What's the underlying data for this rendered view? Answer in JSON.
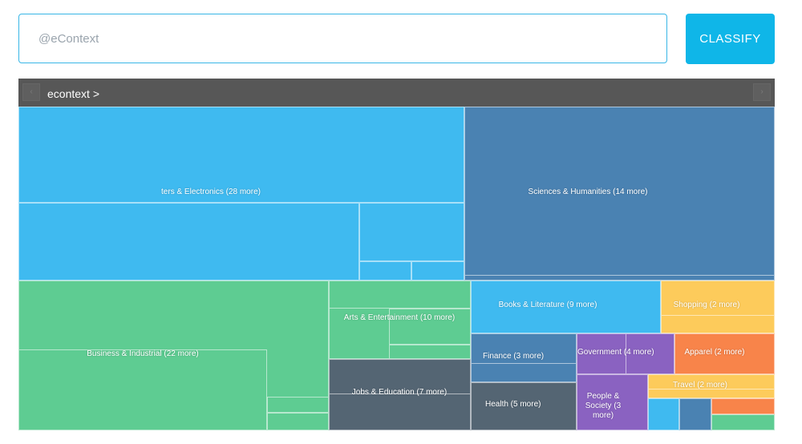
{
  "search": {
    "placeholder": "@eContext",
    "value": ""
  },
  "classify_button": "CLASSIFY",
  "nav": {
    "prev_icon": "chevron-left-icon",
    "next_icon": "chevron-right-icon",
    "prev_glyph": "‹",
    "next_glyph": "›",
    "breadcrumb": "econtext >"
  },
  "treemap": {
    "colors": {
      "blue": "#3fbaf0",
      "steel": "#4a82b2",
      "green": "#5ecc92",
      "slate": "#546573",
      "yellow": "#fdcb5b",
      "orange": "#f8844a",
      "purple": "#8a62c1"
    },
    "categories": [
      {
        "label": "ters & Electronics (28 more)"
      },
      {
        "label": "Sciences & Humanities (14 more)"
      },
      {
        "label": "Business & Industrial (22 more)"
      },
      {
        "label": "Arts & Entertainment (10 more)"
      },
      {
        "label": "Jobs & Education (7 more)"
      },
      {
        "label": "Books & Literature (9 more)"
      },
      {
        "label": "Shopping (2 more)"
      },
      {
        "label": "Finance (3 more)"
      },
      {
        "label": "Government (4 more)"
      },
      {
        "label": "Apparel (2 more)"
      },
      {
        "label": "Health (5 more)"
      },
      {
        "label": "People & Society (3 more)"
      },
      {
        "label": "Travel (2 more)"
      }
    ]
  }
}
